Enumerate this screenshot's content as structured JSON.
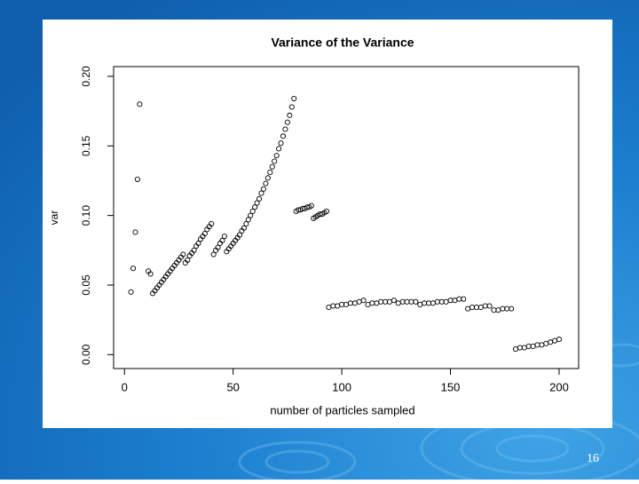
{
  "chart_data": {
    "type": "scatter",
    "title": "Variance of the Variance",
    "x_label": "number of particles sampled",
    "y_label": "var",
    "series": [
      {
        "color": "#000000",
        "x": [
          3,
          4,
          5,
          6,
          7,
          11,
          12,
          13,
          14,
          15,
          16,
          17,
          18,
          19,
          20,
          21,
          22,
          23,
          24,
          25,
          26,
          27,
          28,
          29,
          30,
          31,
          32,
          33,
          34,
          35,
          36,
          37,
          38,
          39,
          40,
          41,
          42,
          43,
          44,
          45,
          46,
          47,
          48,
          49,
          50,
          51,
          52,
          53,
          54,
          55,
          56,
          57,
          58,
          59,
          60,
          61,
          62,
          63,
          64,
          65,
          66,
          67,
          68,
          69,
          70,
          71,
          72,
          73,
          74,
          75,
          76,
          77,
          78,
          79,
          80,
          81,
          82,
          83,
          84,
          85,
          86,
          87,
          88,
          89,
          90,
          91,
          92,
          93,
          94,
          96,
          98,
          100,
          102,
          104,
          106,
          108,
          110,
          112,
          114,
          116,
          118,
          120,
          122,
          124,
          126,
          128,
          130,
          132,
          134,
          136,
          138,
          140,
          142,
          144,
          146,
          148,
          150,
          152,
          154,
          156,
          158,
          160,
          162,
          164,
          166,
          168,
          170,
          172,
          174,
          176,
          178,
          180,
          182,
          184,
          186,
          188,
          190,
          192,
          194,
          196,
          198,
          200
        ],
        "values": [
          0.045,
          0.062,
          0.088,
          0.126,
          0.18,
          0.06,
          0.058,
          0.044,
          0.046,
          0.048,
          0.05,
          0.052,
          0.054,
          0.056,
          0.058,
          0.06,
          0.062,
          0.064,
          0.066,
          0.068,
          0.07,
          0.072,
          0.066,
          0.068,
          0.071,
          0.073,
          0.075,
          0.078,
          0.08,
          0.083,
          0.085,
          0.087,
          0.09,
          0.092,
          0.094,
          0.072,
          0.075,
          0.077,
          0.08,
          0.082,
          0.085,
          0.074,
          0.076,
          0.078,
          0.08,
          0.082,
          0.084,
          0.086,
          0.089,
          0.091,
          0.094,
          0.097,
          0.1,
          0.103,
          0.106,
          0.109,
          0.112,
          0.116,
          0.119,
          0.123,
          0.127,
          0.131,
          0.135,
          0.139,
          0.143,
          0.148,
          0.152,
          0.157,
          0.162,
          0.167,
          0.172,
          0.178,
          0.184,
          0.103,
          0.104,
          0.104,
          0.105,
          0.105,
          0.106,
          0.106,
          0.107,
          0.098,
          0.099,
          0.1,
          0.101,
          0.101,
          0.102,
          0.103,
          0.034,
          0.035,
          0.035,
          0.036,
          0.036,
          0.037,
          0.037,
          0.038,
          0.039,
          0.036,
          0.037,
          0.037,
          0.038,
          0.038,
          0.038,
          0.039,
          0.037,
          0.038,
          0.038,
          0.038,
          0.038,
          0.036,
          0.037,
          0.037,
          0.037,
          0.038,
          0.038,
          0.038,
          0.039,
          0.039,
          0.04,
          0.04,
          0.033,
          0.034,
          0.034,
          0.034,
          0.035,
          0.035,
          0.032,
          0.032,
          0.033,
          0.033,
          0.033,
          0.004,
          0.005,
          0.005,
          0.006,
          0.006,
          0.007,
          0.007,
          0.008,
          0.009,
          0.01,
          0.011
        ]
      }
    ],
    "xlim": [
      -5,
      209
    ],
    "ylim": [
      -0.01,
      0.207
    ],
    "xticks": [
      0,
      50,
      100,
      150,
      200
    ],
    "yticks": [
      {
        "value": 0,
        "label": "0.00"
      },
      {
        "value": 0.05,
        "label": "0.05"
      },
      {
        "value": 0.1,
        "label": "0.10"
      },
      {
        "value": 0.15,
        "label": "0.15"
      },
      {
        "value": 0.2,
        "label": "0.20"
      }
    ],
    "marker": "open-circle"
  },
  "footer": {
    "page_number": "16"
  }
}
